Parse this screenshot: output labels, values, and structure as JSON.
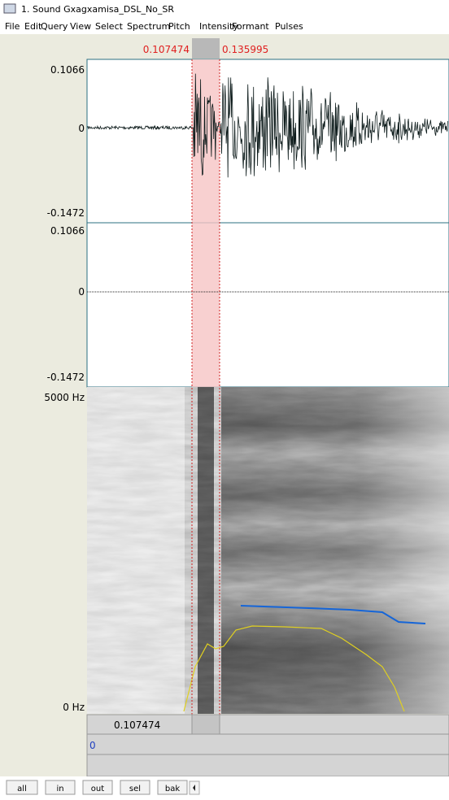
{
  "window": {
    "title": "1. Sound Gxagxamisa_DSL_No_SR"
  },
  "menu": [
    "File",
    "Edit",
    "Query",
    "View",
    "Select",
    "Spectrum",
    "Pitch",
    "Intensity",
    "Formant",
    "Pulses"
  ],
  "selection": {
    "start": "0.107474",
    "end": "0.135995"
  },
  "panels": [
    {
      "max": "0.1066",
      "zero": "0",
      "min": "-0.1472"
    },
    {
      "max": "0.1066",
      "zero": "0",
      "min": "-0.1472"
    }
  ],
  "spectrogram": {
    "max": "5000 Hz",
    "min": "0 Hz"
  },
  "cursor_time": "0.107474",
  "tier_label": "0",
  "buttons": [
    "all",
    "in",
    "out",
    "sel",
    "bak"
  ]
}
